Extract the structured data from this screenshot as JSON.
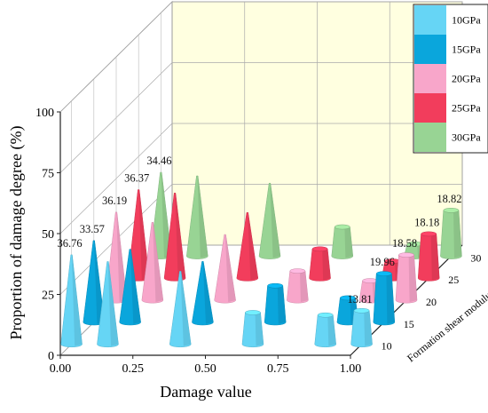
{
  "chart_data": {
    "type": "bar",
    "title": "",
    "xlabel": "Damage value",
    "ylabel": "Proportion of damage degree (%)",
    "zlabel": "Formation shear modulus (GPa)",
    "x_ticks": [
      "0.00",
      "0.25",
      "0.50",
      "0.75",
      "1.00"
    ],
    "y_ticks": [
      "0",
      "25",
      "50",
      "75",
      "100"
    ],
    "z_ticks": [
      "10",
      "15",
      "20",
      "25",
      "30"
    ],
    "ylim": [
      0,
      100
    ],
    "categories": [
      "0.00",
      "0.125",
      "0.375",
      "0.625",
      "0.875",
      "1.00"
    ],
    "series": [
      {
        "name": "10GPa",
        "color": "#66d5f5",
        "values": [
          36.76,
          34,
          30,
          13,
          12,
          13.81
        ]
      },
      {
        "name": "15GPa",
        "color": "#0aa6dc",
        "values": [
          33.57,
          30,
          25,
          15,
          10,
          19.96
        ]
      },
      {
        "name": "20GPa",
        "color": "#f8a6ca",
        "values": [
          36.19,
          32,
          27,
          12,
          8,
          18.58
        ]
      },
      {
        "name": "25GPa",
        "color": "#f23d5c",
        "values": [
          36.37,
          35,
          27,
          12,
          7,
          18.18
        ]
      },
      {
        "name": "30GPa",
        "color": "#98d494",
        "values": [
          34.46,
          33,
          30,
          12,
          5,
          18.82
        ]
      }
    ],
    "data_labels_left": [
      "36.76",
      "33.57",
      "36.19",
      "36.37",
      "34.46"
    ],
    "data_labels_right": [
      "13.81",
      "19.96",
      "18.58",
      "18.18",
      "18.82"
    ],
    "legend": {
      "position": "right",
      "entries": [
        "10GPa",
        "15GPa",
        "20GPa",
        "25GPa",
        "30GPa"
      ]
    },
    "grid": true,
    "back_wall_color": "#ffffe0"
  }
}
